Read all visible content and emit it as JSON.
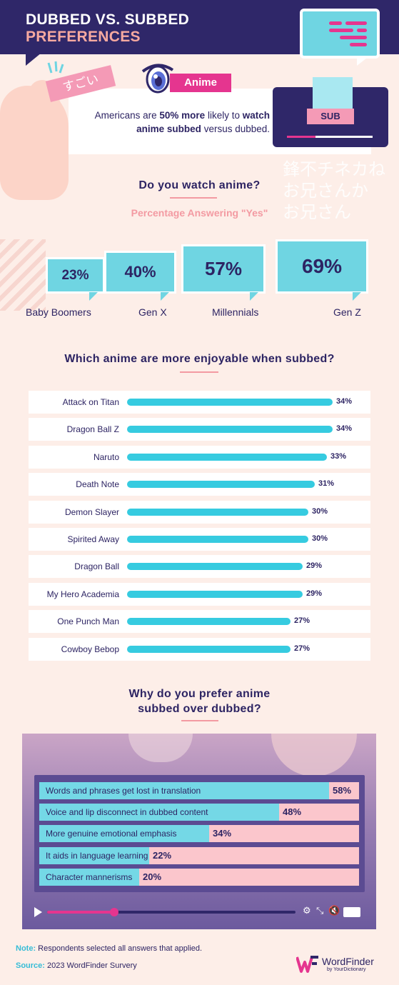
{
  "header": {
    "title_line1": "DUBBED VS. SUBBED",
    "title_line2": "PREFERENCES"
  },
  "hero": {
    "sugoi": "すごい",
    "anime_tag": "Anime",
    "sub_tag": "SUB",
    "stat_pre": "Americans are ",
    "stat_bold1": "50% more",
    "stat_mid": " likely to ",
    "stat_bold2": "watch anime subbed",
    "stat_post": " versus dubbed.",
    "watermark_line1": "鋒不チネカね",
    "watermark_line2": "お兄さんか",
    "watermark_line3": "お兄さん"
  },
  "section1": {
    "title": "Do you watch anime?",
    "subtitle": "Percentage Answering \"Yes\""
  },
  "section2": {
    "title": "Which anime are more enjoyable when subbed?"
  },
  "section3": {
    "title_line1": "Why do you prefer anime",
    "title_line2": "subbed over dubbed?"
  },
  "chart_data": [
    {
      "type": "bar",
      "title": "Do you watch anime?",
      "subtitle": "Percentage Answering \"Yes\"",
      "categories": [
        "Baby Boomers",
        "Gen X",
        "Millennials",
        "Gen Z"
      ],
      "values": [
        23,
        40,
        57,
        69
      ],
      "value_labels": [
        "23%",
        "40%",
        "57%",
        "69%"
      ],
      "unit": "%"
    },
    {
      "type": "bar",
      "orientation": "horizontal",
      "title": "Which anime are more enjoyable when subbed?",
      "categories": [
        "Attack on Titan",
        "Dragon Ball Z",
        "Naruto",
        "Death Note",
        "Demon Slayer",
        "Spirited Away",
        "Dragon Ball",
        "My Hero Academia",
        "One Punch Man",
        "Cowboy Bebop"
      ],
      "values": [
        34,
        34,
        33,
        31,
        30,
        30,
        29,
        29,
        27,
        27
      ],
      "value_labels": [
        "34%",
        "34%",
        "33%",
        "31%",
        "30%",
        "30%",
        "29%",
        "29%",
        "27%",
        "27%"
      ],
      "unit": "%"
    },
    {
      "type": "bar",
      "orientation": "horizontal",
      "title": "Why do you prefer anime subbed over dubbed?",
      "categories": [
        "Words and phrases get lost in translation",
        "Voice and lip disconnect in dubbed content",
        "More genuine emotional emphasis",
        "It aids in language learning",
        "Character mannerisms"
      ],
      "values": [
        58,
        48,
        34,
        22,
        20
      ],
      "value_labels": [
        "58%",
        "48%",
        "34%",
        "22%",
        "20%"
      ],
      "unit": "%"
    }
  ],
  "footer": {
    "note_label": "Note:",
    "note_text": " Respondents selected all answers that applied.",
    "source_label": "Source:",
    "source_text": " 2023 WordFinder Survery",
    "logo_name": "WordFinder",
    "logo_tagline": "by YourDictionary"
  },
  "colors": {
    "navy": "#2f2769",
    "pink": "#e5358f",
    "cyan": "#36cbe0",
    "bubble": "#6fd5e2",
    "background": "#fdeee8"
  }
}
